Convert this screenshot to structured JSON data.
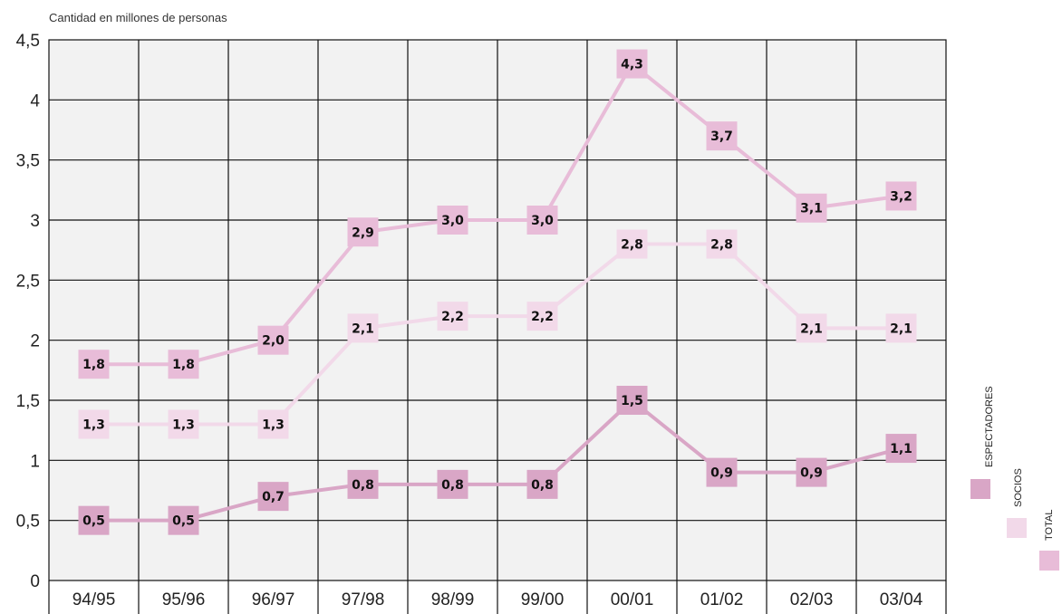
{
  "chart_data": {
    "type": "line",
    "ylabel": "Cantidad en millones de personas",
    "categories": [
      "94/95",
      "95/96",
      "96/97",
      "97/98",
      "98/99",
      "99/00",
      "00/01",
      "01/02",
      "02/03",
      "03/04"
    ],
    "yticks": [
      "0",
      "0,5",
      "1",
      "1,5",
      "2",
      "2,5",
      "3",
      "3,5",
      "4",
      "4,5"
    ],
    "ylim": [
      0,
      4.5
    ],
    "grid": true,
    "legend_position": "right",
    "series": [
      {
        "name": "ESPECTADORES",
        "color": "#d9a6c6",
        "values": [
          0.5,
          0.5,
          0.7,
          0.8,
          0.8,
          0.8,
          1.5,
          0.9,
          0.9,
          1.1
        ],
        "labels": [
          "0,5",
          "0,5",
          "0,7",
          "0,8",
          "0,8",
          "0,8",
          "1,5",
          "0,9",
          "0,9",
          "1,1"
        ]
      },
      {
        "name": "SOCIOS",
        "color": "#f2d9e9",
        "values": [
          1.3,
          1.3,
          1.3,
          2.1,
          2.2,
          2.2,
          2.8,
          2.8,
          2.1,
          2.1
        ],
        "labels": [
          "1,3",
          "1,3",
          "1,3",
          "2,1",
          "2,2",
          "2,2",
          "2,8",
          "2,8",
          "2,1",
          "2,1"
        ]
      },
      {
        "name": "TOTAL",
        "color": "#e8bcd8",
        "values": [
          1.8,
          1.8,
          2.0,
          2.9,
          3.0,
          3.0,
          4.3,
          3.7,
          3.1,
          3.2
        ],
        "labels": [
          "1,8",
          "1,8",
          "2,0",
          "2,9",
          "3,0",
          "3,0",
          "4,3",
          "3,7",
          "3,1",
          "3,2"
        ]
      }
    ]
  }
}
